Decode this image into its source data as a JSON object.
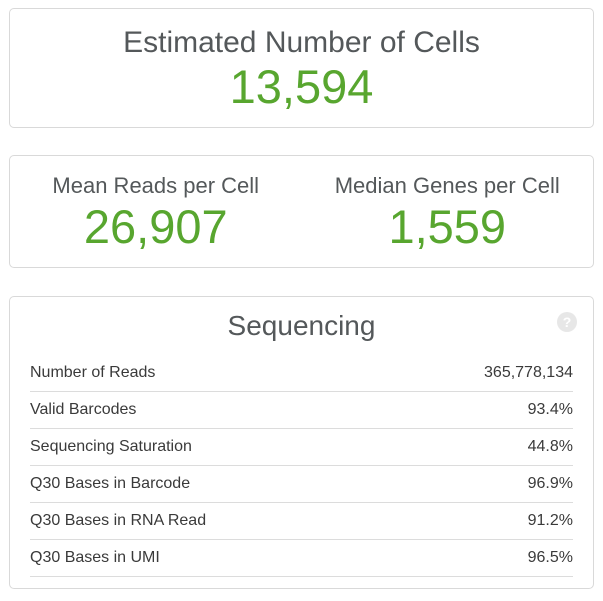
{
  "colors": {
    "accent_green": "#58a62f",
    "heading_gray": "#54585a",
    "table_text": "#3a3a3a",
    "card_border": "#d9d9d9",
    "row_divider": "#dcdcdc",
    "help_circle_bg": "#e7e7e7"
  },
  "cards": {
    "estimated_cells": {
      "title": "Estimated Number of Cells",
      "value": "13,594"
    },
    "per_cell": {
      "metrics": [
        {
          "label": "Mean Reads per Cell",
          "value": "26,907"
        },
        {
          "label": "Median Genes per Cell",
          "value": "1,559"
        }
      ]
    },
    "sequencing": {
      "title": "Sequencing",
      "help_glyph": "?",
      "rows": [
        {
          "label": "Number of Reads",
          "value": "365,778,134"
        },
        {
          "label": "Valid Barcodes",
          "value": "93.4%"
        },
        {
          "label": "Sequencing Saturation",
          "value": "44.8%"
        },
        {
          "label": "Q30 Bases in Barcode",
          "value": "96.9%"
        },
        {
          "label": "Q30 Bases in RNA Read",
          "value": "91.2%"
        },
        {
          "label": "Q30 Bases in UMI",
          "value": "96.5%"
        }
      ]
    }
  }
}
